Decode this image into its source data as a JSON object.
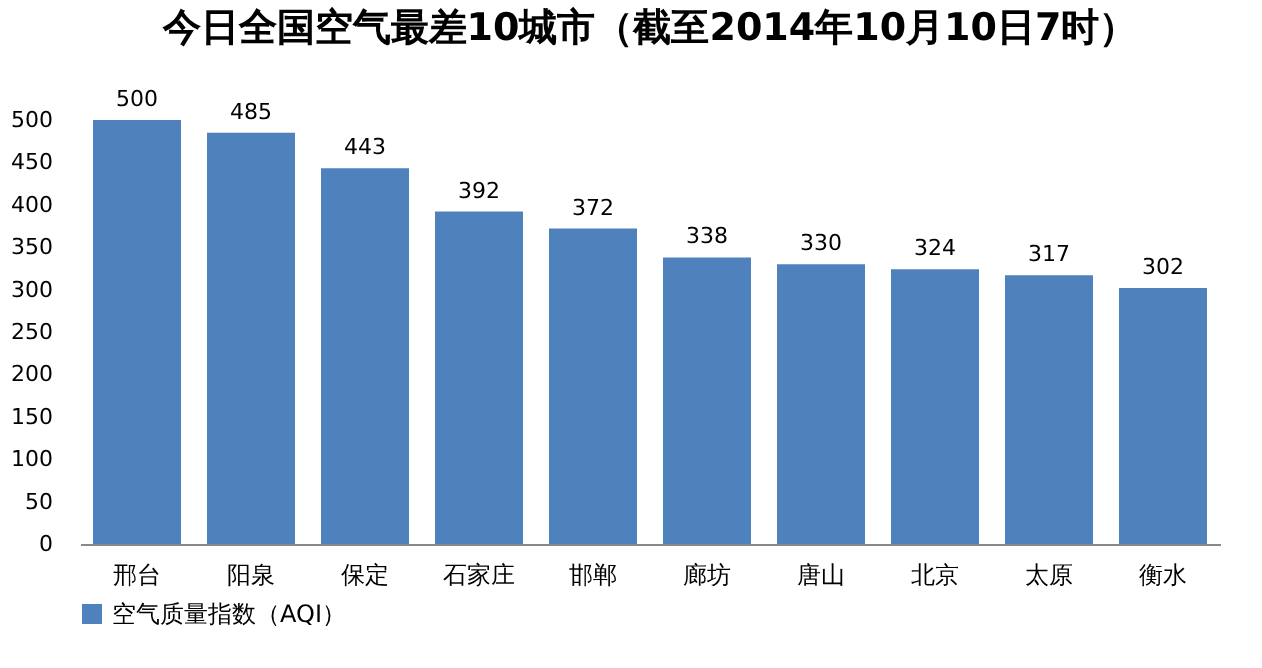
{
  "chart_data": {
    "type": "bar",
    "title": "今日全国空气最差10城市（截至2014年10月10日7时）",
    "categories": [
      "邢台",
      "阳泉",
      "保定",
      "石家庄",
      "邯郸",
      "廊坊",
      "唐山",
      "北京",
      "太原",
      "衡水"
    ],
    "series": [
      {
        "name": "空气质量指数（AQI）",
        "color": "#4f81bd",
        "values": [
          500,
          485,
          443,
          392,
          372,
          338,
          330,
          324,
          317,
          302
        ]
      }
    ],
    "ylim": [
      0,
      500
    ],
    "yticks": [
      0,
      50,
      100,
      150,
      200,
      250,
      300,
      350,
      400,
      450,
      500
    ],
    "data_labels": true,
    "legend": "bottom",
    "grid": false
  }
}
